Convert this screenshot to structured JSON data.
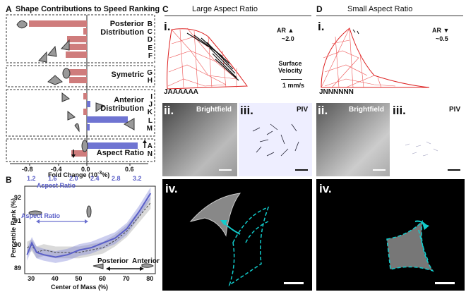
{
  "panel_a": {
    "letter": "A",
    "title": "Shape Contributions to Speed Ranking",
    "groups": [
      {
        "label": "Posterior\nDistribution",
        "rows": [
          "B",
          "C",
          "D",
          "E",
          "F"
        ]
      },
      {
        "label": "Symetric",
        "rows": [
          "G",
          "H"
        ]
      },
      {
        "label": "Anterior\nDistribution",
        "rows": [
          "I",
          "J",
          "K",
          "L",
          "M"
        ]
      },
      {
        "label": "Aspect Ratio",
        "rows": [
          "A",
          "N"
        ]
      }
    ],
    "xlabel": "Fold Change (10",
    "xlabel_exp": "-3",
    "xlabel_tail": "%)",
    "ticks": [
      "-0.8",
      "-0.4",
      "0.0",
      "0.6"
    ]
  },
  "panel_b": {
    "letter": "B",
    "ylabel": "Percentile Rank (%)",
    "xlabel": "Center of Mass (%)",
    "top_axis_label": "Aspect Ratio",
    "inner_label": "Aspect Ratio",
    "posterior": "Posterior",
    "anterior": "Anterior",
    "x_ticks": [
      "30",
      "40",
      "50",
      "60",
      "70",
      "80"
    ],
    "y_ticks": [
      "89",
      "90",
      "91",
      "92"
    ],
    "top_ticks": [
      "1.2",
      "1.6",
      "2.0",
      "2.4",
      "2.8",
      "3.2"
    ],
    "colors": {
      "blue": "#5a5fc8",
      "gray": "#222222"
    }
  },
  "chart_data": [
    {
      "type": "bar",
      "title": "Shape Contributions to Speed Ranking",
      "categories": [
        "B",
        "C",
        "D",
        "E",
        "F",
        "G",
        "H",
        "I",
        "J",
        "K",
        "L",
        "M",
        "A",
        "N"
      ],
      "values": [
        -0.82,
        -0.05,
        -0.28,
        -0.3,
        -0.3,
        -0.28,
        -0.25,
        -0.05,
        0.05,
        -0.05,
        0.58,
        0.04,
        0.72,
        -0.22
      ],
      "xlabel": "Fold Change (10^-3 %)",
      "xlim": [
        -1.0,
        0.8
      ]
    },
    {
      "type": "line",
      "xlabel": "Center of Mass (%)",
      "ylabel": "Percentile Rank (%)",
      "xlim": [
        27,
        82
      ],
      "ylim": [
        88.8,
        92.5
      ],
      "series": [
        {
          "name": "Center of Mass",
          "x": [
            28,
            30,
            32,
            35,
            40,
            45,
            50,
            55,
            60,
            65,
            70,
            75,
            80
          ],
          "y": [
            89.9,
            90.0,
            89.7,
            89.8,
            89.7,
            89.7,
            89.7,
            89.8,
            89.9,
            90.2,
            90.6,
            91.2,
            91.8
          ]
        },
        {
          "name": "Aspect Ratio",
          "x": [
            28,
            30,
            32,
            35,
            40,
            45,
            50,
            55,
            60,
            65,
            70,
            75,
            80
          ],
          "y": [
            89.6,
            90.1,
            89.7,
            89.6,
            89.5,
            89.6,
            89.8,
            89.9,
            90.1,
            90.3,
            90.7,
            91.4,
            92.2
          ]
        }
      ]
    }
  ],
  "panel_c": {
    "letter": "C",
    "title": "Large Aspect Ratio",
    "i": "i.",
    "ii": "ii.",
    "iii": "iii.",
    "iv": "iv.",
    "ar_label": "AR",
    "ar_value": "~2.0",
    "surface": "Surface\nVelocity",
    "speed": "1 mm/s",
    "code": "JAAAAAA",
    "brightfield": "Brightfield",
    "piv": "PIV"
  },
  "panel_d": {
    "letter": "D",
    "title": "Small Aspect Ratio",
    "i": "i.",
    "ii": "ii.",
    "iii": "iii.",
    "iv": "iv.",
    "ar_label": "AR",
    "ar_value": "~0.5",
    "code": "JNNNNNN",
    "brightfield": "Brightfield",
    "piv": "PIV"
  }
}
